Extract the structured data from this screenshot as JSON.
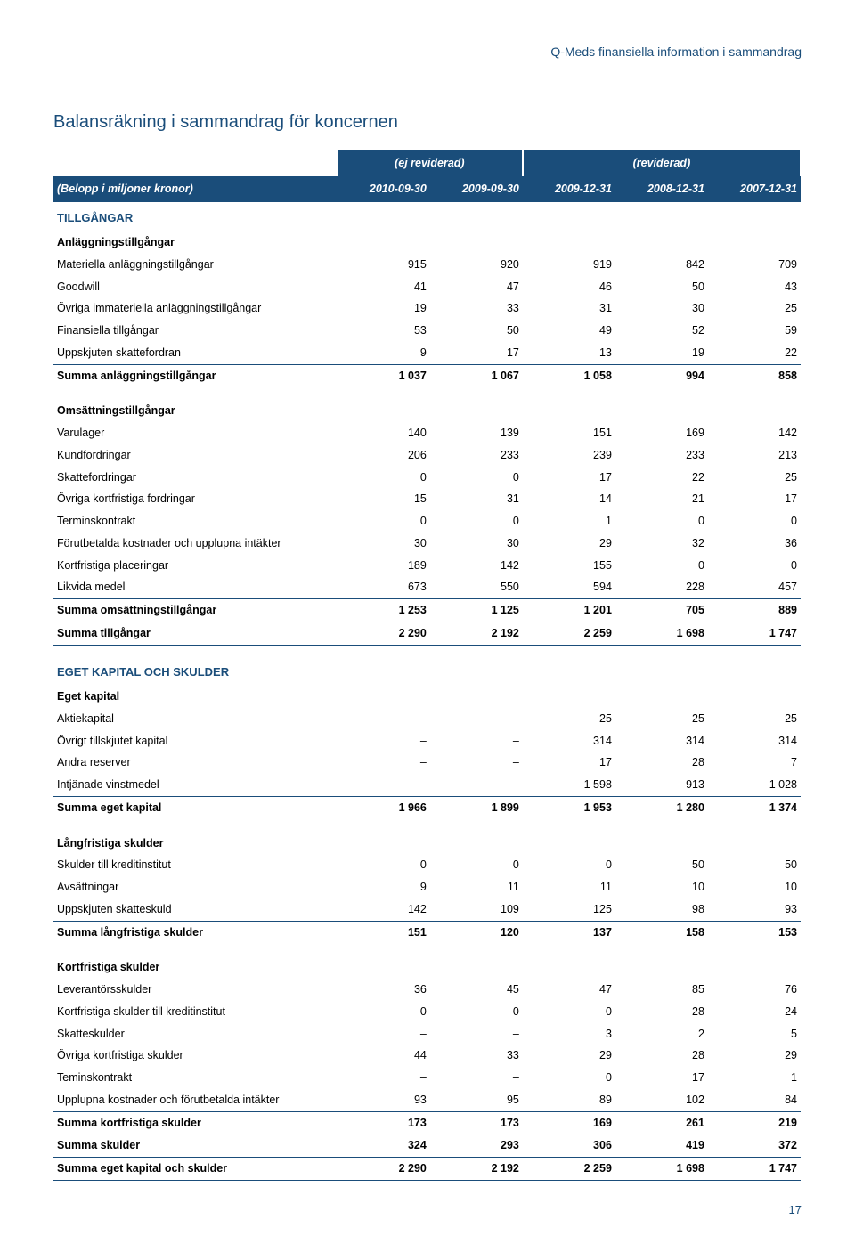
{
  "header": "Q-Meds finansiella information i sammandrag",
  "title": "Balansräkning i sammandrag för koncernen",
  "pageNum": "17",
  "superHeader": {
    "left": "(ej reviderad)",
    "right": "(reviderad)"
  },
  "colHeader": [
    "(Belopp i miljoner kronor)",
    "2010-09-30",
    "2009-09-30",
    "2009-12-31",
    "2008-12-31",
    "2007-12-31"
  ],
  "sections": [
    {
      "type": "section-label",
      "cells": [
        "TILLGÅNGAR",
        "",
        "",
        "",
        "",
        ""
      ]
    },
    {
      "type": "sub-header",
      "cells": [
        "Anläggningstillgångar",
        "",
        "",
        "",
        "",
        ""
      ]
    },
    {
      "type": "data",
      "cells": [
        "Materiella anläggningstillgångar",
        "915",
        "920",
        "919",
        "842",
        "709"
      ]
    },
    {
      "type": "data",
      "cells": [
        "Goodwill",
        "41",
        "47",
        "46",
        "50",
        "43"
      ]
    },
    {
      "type": "data",
      "cells": [
        "Övriga immateriella anläggningstillgångar",
        "19",
        "33",
        "31",
        "30",
        "25"
      ]
    },
    {
      "type": "data",
      "cells": [
        "Finansiella tillgångar",
        "53",
        "50",
        "49",
        "52",
        "59"
      ]
    },
    {
      "type": "data underline",
      "cells": [
        "Uppskjuten skattefordran",
        "9",
        "17",
        "13",
        "19",
        "22"
      ]
    },
    {
      "type": "bold",
      "cells": [
        "Summa anläggningstillgångar",
        "1 037",
        "1 067",
        "1 058",
        "994",
        "858"
      ]
    },
    {
      "type": "spacer",
      "cells": [
        "",
        "",
        "",
        "",
        "",
        ""
      ]
    },
    {
      "type": "sub-header",
      "cells": [
        "Omsättningstillgångar",
        "",
        "",
        "",
        "",
        ""
      ]
    },
    {
      "type": "data",
      "cells": [
        "Varulager",
        "140",
        "139",
        "151",
        "169",
        "142"
      ]
    },
    {
      "type": "data",
      "cells": [
        "Kundfordringar",
        "206",
        "233",
        "239",
        "233",
        "213"
      ]
    },
    {
      "type": "data",
      "cells": [
        "Skattefordringar",
        "0",
        "0",
        "17",
        "22",
        "25"
      ]
    },
    {
      "type": "data",
      "cells": [
        "Övriga kortfristiga fordringar",
        "15",
        "31",
        "14",
        "21",
        "17"
      ]
    },
    {
      "type": "data",
      "cells": [
        "Terminskontrakt",
        "0",
        "0",
        "1",
        "0",
        "0"
      ]
    },
    {
      "type": "data",
      "cells": [
        "Förutbetalda kostnader och upplupna intäkter",
        "30",
        "30",
        "29",
        "32",
        "36"
      ]
    },
    {
      "type": "data",
      "cells": [
        "Kortfristiga placeringar",
        "189",
        "142",
        "155",
        "0",
        "0"
      ]
    },
    {
      "type": "data underline",
      "cells": [
        "Likvida medel",
        "673",
        "550",
        "594",
        "228",
        "457"
      ]
    },
    {
      "type": "bold underline",
      "cells": [
        "Summa omsättningstillgångar",
        "1 253",
        "1 125",
        "1 201",
        "705",
        "889"
      ]
    },
    {
      "type": "bold underline",
      "cells": [
        "Summa tillgångar",
        "2 290",
        "2 192",
        "2 259",
        "1 698",
        "1 747"
      ]
    },
    {
      "type": "spacer",
      "cells": [
        "",
        "",
        "",
        "",
        "",
        ""
      ]
    },
    {
      "type": "section-label",
      "cells": [
        "EGET KAPITAL OCH SKULDER",
        "",
        "",
        "",
        "",
        ""
      ]
    },
    {
      "type": "sub-header",
      "cells": [
        "Eget kapital",
        "",
        "",
        "",
        "",
        ""
      ]
    },
    {
      "type": "data",
      "cells": [
        "Aktiekapital",
        "–",
        "–",
        "25",
        "25",
        "25"
      ]
    },
    {
      "type": "data",
      "cells": [
        "Övrigt tillskjutet kapital",
        "–",
        "–",
        "314",
        "314",
        "314"
      ]
    },
    {
      "type": "data",
      "cells": [
        "Andra reserver",
        "–",
        "–",
        "17",
        "28",
        "7"
      ]
    },
    {
      "type": "data underline",
      "cells": [
        "Intjänade vinstmedel",
        "–",
        "–",
        "1 598",
        "913",
        "1 028"
      ]
    },
    {
      "type": "bold",
      "cells": [
        "Summa eget kapital",
        "1 966",
        "1 899",
        "1 953",
        "1 280",
        "1 374"
      ]
    },
    {
      "type": "spacer",
      "cells": [
        "",
        "",
        "",
        "",
        "",
        ""
      ]
    },
    {
      "type": "sub-header",
      "cells": [
        "Långfristiga skulder",
        "",
        "",
        "",
        "",
        ""
      ]
    },
    {
      "type": "data",
      "cells": [
        "Skulder till kreditinstitut",
        "0",
        "0",
        "0",
        "50",
        "50"
      ]
    },
    {
      "type": "data",
      "cells": [
        "Avsättningar",
        "9",
        "11",
        "11",
        "10",
        "10"
      ]
    },
    {
      "type": "data underline",
      "cells": [
        "Uppskjuten skatteskuld",
        "142",
        "109",
        "125",
        "98",
        "93"
      ]
    },
    {
      "type": "bold",
      "cells": [
        "Summa långfristiga skulder",
        "151",
        "120",
        "137",
        "158",
        "153"
      ]
    },
    {
      "type": "spacer",
      "cells": [
        "",
        "",
        "",
        "",
        "",
        ""
      ]
    },
    {
      "type": "sub-header",
      "cells": [
        "Kortfristiga skulder",
        "",
        "",
        "",
        "",
        ""
      ]
    },
    {
      "type": "data",
      "cells": [
        "Leverantörsskulder",
        "36",
        "45",
        "47",
        "85",
        "76"
      ]
    },
    {
      "type": "data",
      "cells": [
        "Kortfristiga skulder till kreditinstitut",
        "0",
        "0",
        "0",
        "28",
        "24"
      ]
    },
    {
      "type": "data",
      "cells": [
        "Skatteskulder",
        "–",
        "–",
        "3",
        "2",
        "5"
      ]
    },
    {
      "type": "data",
      "cells": [
        "Övriga kortfristiga skulder",
        "44",
        "33",
        "29",
        "28",
        "29"
      ]
    },
    {
      "type": "data",
      "cells": [
        "Teminskontrakt",
        "–",
        "–",
        "0",
        "17",
        "1"
      ]
    },
    {
      "type": "data underline",
      "cells": [
        "Upplupna kostnader och förutbetalda intäkter",
        "93",
        "95",
        "89",
        "102",
        "84"
      ]
    },
    {
      "type": "bold underline",
      "cells": [
        "Summa kortfristiga skulder",
        "173",
        "173",
        "169",
        "261",
        "219"
      ]
    },
    {
      "type": "bold underline",
      "cells": [
        "Summa skulder",
        "324",
        "293",
        "306",
        "419",
        "372"
      ]
    },
    {
      "type": "bold underline",
      "cells": [
        "Summa eget kapital och skulder",
        "2 290",
        "2 192",
        "2 259",
        "1 698",
        "1 747"
      ]
    }
  ]
}
